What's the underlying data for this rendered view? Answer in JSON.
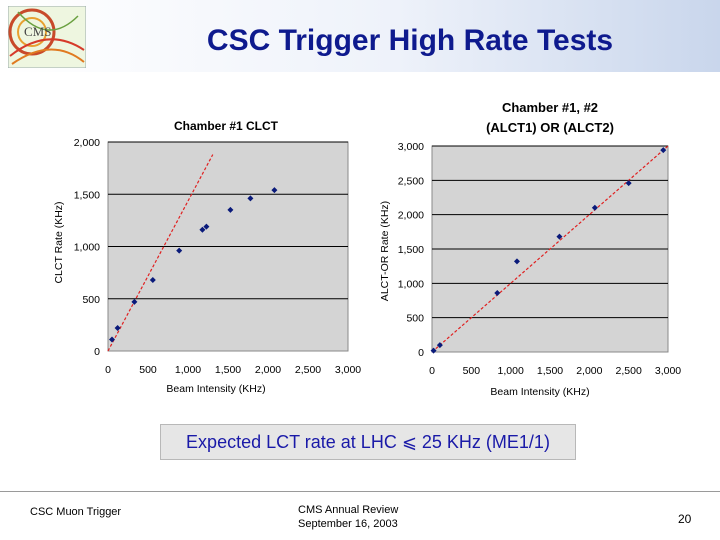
{
  "slide": {
    "title": "CSC Trigger High Rate Tests",
    "caption": "Expected LCT rate at LHC ⩽ 25 KHz (ME1/1)",
    "footer_left": "CSC Muon Trigger",
    "footer_center_line1": "CMS Annual Review",
    "footer_center_line2": "September 16, 2003",
    "page_number": "20"
  },
  "colors": {
    "title": "#0e1a8e",
    "caption_text": "#1a1aa8",
    "plot_bg": "#d4d4d4",
    "marker": "#0a1a7a",
    "fit_line": "#e02020"
  },
  "chart_data": [
    {
      "type": "scatter",
      "title": "Chamber #1  CLCT",
      "xlabel": "Beam Intensity (KHz)",
      "ylabel": "CLCT Rate (KHz)",
      "xlim": [
        0,
        3000
      ],
      "ylim": [
        0,
        2000
      ],
      "xticks": [
        "0",
        "500",
        "1,000",
        "1,500",
        "2,000",
        "2,500",
        "3,000"
      ],
      "yticks": [
        "0",
        "500",
        "1,000",
        "1,500",
        "2,000"
      ],
      "grid": "horizontal",
      "series": [
        {
          "x": [
            50,
            120,
            330,
            560,
            890,
            1180,
            1230,
            1530,
            1780,
            2080
          ],
          "y": [
            110,
            220,
            470,
            680,
            960,
            1160,
            1190,
            1350,
            1460,
            1540
          ]
        }
      ],
      "fit_line": {
        "x": [
          0,
          1310
        ],
        "y": [
          0,
          1880
        ]
      }
    },
    {
      "type": "scatter",
      "title": "Chamber #1, #2\n(ALCT1) OR (ALCT2)",
      "xlabel": "Beam Intensity (KHz)",
      "ylabel": "ALCT-OR Rate (KHz)",
      "xlim": [
        0,
        3000
      ],
      "ylim": [
        0,
        3000
      ],
      "xticks": [
        "0",
        "500",
        "1,000",
        "1,500",
        "2,000",
        "2,500",
        "3,000"
      ],
      "yticks": [
        "0",
        "500",
        "1,000",
        "1,500",
        "2,000",
        "2,500",
        "3,000"
      ],
      "grid": "horizontal",
      "series": [
        {
          "x": [
            20,
            100,
            830,
            1080,
            1620,
            2070,
            2500,
            2940
          ],
          "y": [
            20,
            100,
            860,
            1320,
            1680,
            2100,
            2460,
            2940
          ]
        }
      ],
      "fit_line": {
        "x": [
          0,
          3000
        ],
        "y": [
          0,
          3000
        ]
      }
    }
  ]
}
